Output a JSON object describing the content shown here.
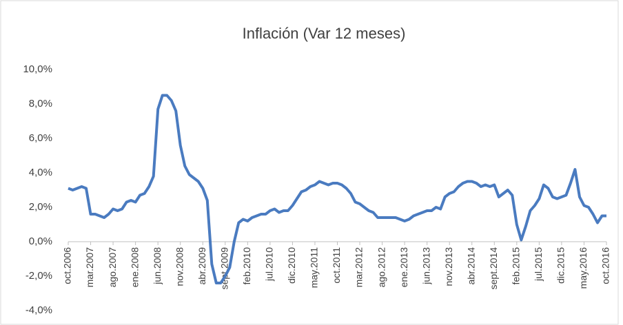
{
  "chart_data": {
    "type": "line",
    "title": "Inflación (Var 12 meses)",
    "categories": [
      "oct.2006",
      null,
      null,
      null,
      null,
      "mar.2007",
      null,
      null,
      null,
      null,
      "ago.2007",
      null,
      null,
      null,
      null,
      "ene.2008",
      null,
      null,
      null,
      null,
      "jun.2008",
      null,
      null,
      null,
      null,
      "nov.2008",
      null,
      null,
      null,
      null,
      "abr.2009",
      null,
      null,
      null,
      null,
      "sept.2009",
      null,
      null,
      null,
      null,
      "feb.2010",
      null,
      null,
      null,
      null,
      "jul.2010",
      null,
      null,
      null,
      null,
      "dic.2010",
      null,
      null,
      null,
      null,
      "may.2011",
      null,
      null,
      null,
      null,
      "oct.2011",
      null,
      null,
      null,
      null,
      "mar.2012",
      null,
      null,
      null,
      null,
      "ago.2012",
      null,
      null,
      null,
      null,
      "ene.2013",
      null,
      null,
      null,
      null,
      "jun.2013",
      null,
      null,
      null,
      null,
      "nov.2013",
      null,
      null,
      null,
      null,
      "abr.2014",
      null,
      null,
      null,
      null,
      "sept.2014",
      null,
      null,
      null,
      null,
      "feb.2015",
      null,
      null,
      null,
      null,
      "jul.2015",
      null,
      null,
      null,
      null,
      "dic.2015",
      null,
      null,
      null,
      null,
      "may.2016",
      null,
      null,
      null,
      null,
      "oct.2016"
    ],
    "series": [
      {
        "color": "#4a7bc0",
        "values": [
          3.1,
          3.0,
          3.1,
          3.2,
          3.1,
          1.6,
          1.6,
          1.5,
          1.4,
          1.6,
          1.9,
          1.8,
          1.9,
          2.3,
          2.4,
          2.3,
          2.7,
          2.8,
          3.2,
          3.8,
          7.7,
          8.5,
          8.5,
          8.2,
          7.6,
          5.6,
          4.4,
          3.9,
          3.7,
          3.5,
          3.1,
          2.4,
          -1.3,
          -2.4,
          -2.4,
          -2.0,
          -1.5,
          0.0,
          1.1,
          1.3,
          1.2,
          1.4,
          1.5,
          1.6,
          1.6,
          1.8,
          1.9,
          1.7,
          1.8,
          1.8,
          2.1,
          2.5,
          2.9,
          3.0,
          3.2,
          3.3,
          3.5,
          3.4,
          3.3,
          3.4,
          3.4,
          3.3,
          3.1,
          2.8,
          2.3,
          2.2,
          2.0,
          1.8,
          1.7,
          1.4,
          1.4,
          1.4,
          1.4,
          1.4,
          1.3,
          1.2,
          1.3,
          1.5,
          1.6,
          1.7,
          1.8,
          1.8,
          2.0,
          1.9,
          2.6,
          2.8,
          2.9,
          3.2,
          3.4,
          3.5,
          3.5,
          3.4,
          3.2,
          3.3,
          3.2,
          3.3,
          2.6,
          2.8,
          3.0,
          2.7,
          1.0,
          0.1,
          0.9,
          1.8,
          2.1,
          2.5,
          3.3,
          3.1,
          2.6,
          2.5,
          2.6,
          2.7,
          3.4,
          4.2,
          2.6,
          2.1,
          2.0,
          1.6,
          1.1,
          1.5,
          1.5
        ]
      }
    ],
    "ylim": [
      -4,
      10
    ],
    "yticks": [
      {
        "value": -4,
        "label": "-4,0%"
      },
      {
        "value": -2,
        "label": "-2,0%"
      },
      {
        "value": 0,
        "label": "0,0%"
      },
      {
        "value": 2,
        "label": "2,0%"
      },
      {
        "value": 4,
        "label": "4,0%"
      },
      {
        "value": 6,
        "label": "6,0%"
      },
      {
        "value": 8,
        "label": "8,0%"
      },
      {
        "value": 10,
        "label": "10,0%"
      }
    ],
    "grid": false
  }
}
